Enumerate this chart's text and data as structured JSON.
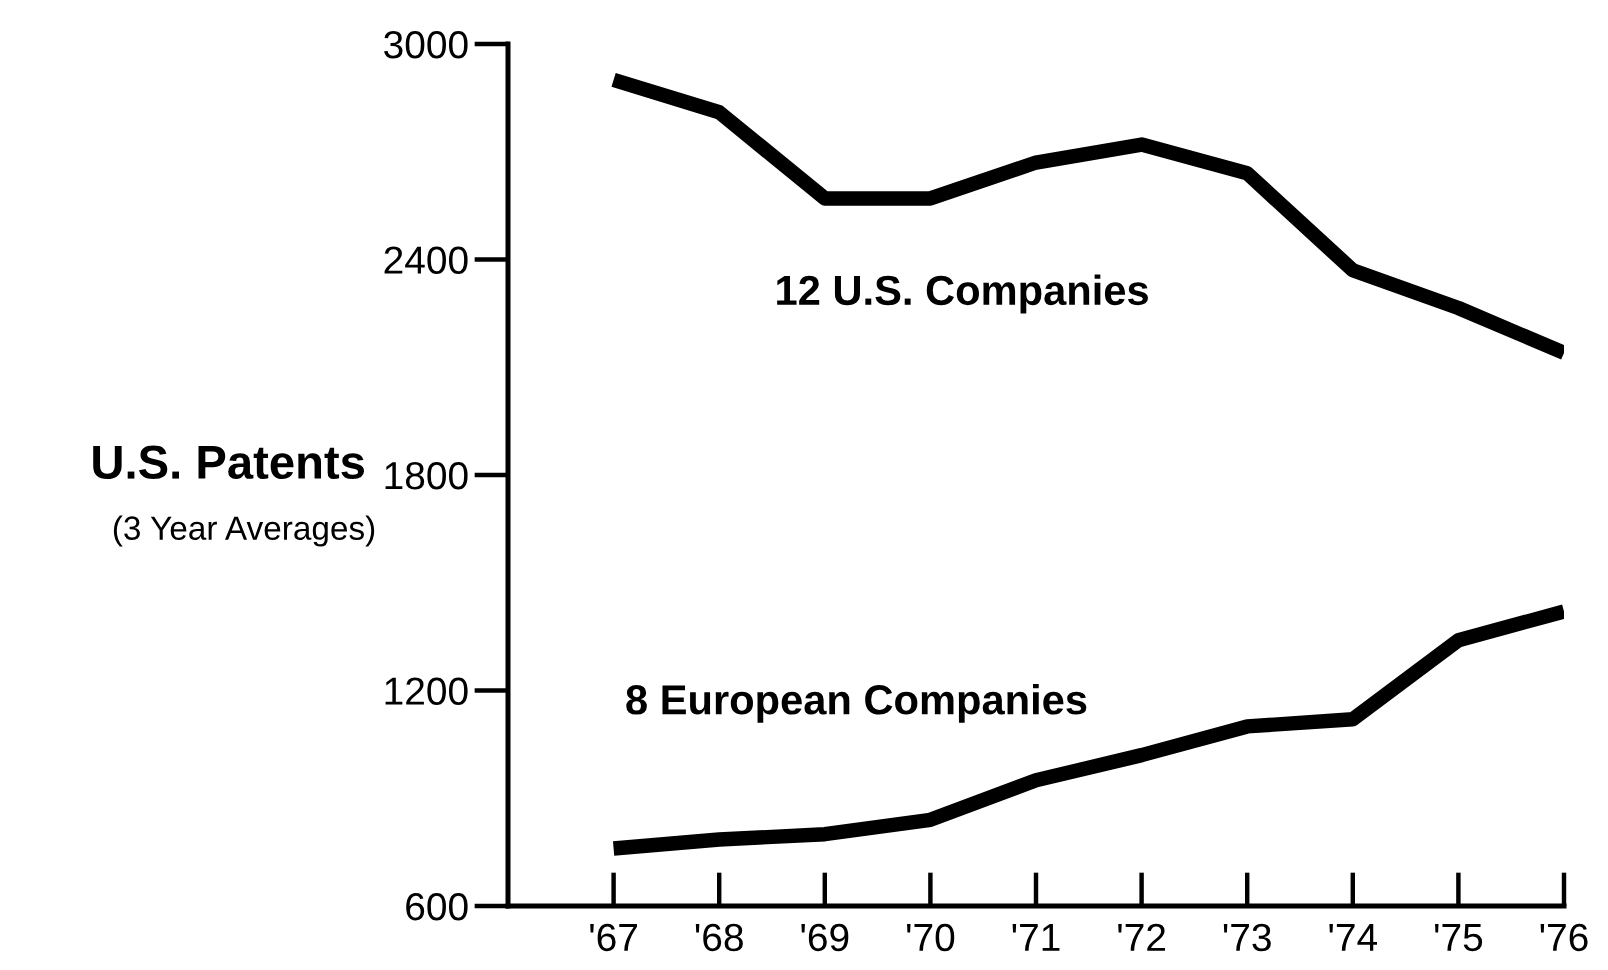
{
  "chart_data": {
    "type": "line",
    "categories": [
      "'67",
      "'68",
      "'69",
      "'70",
      "'71",
      "'72",
      "'73",
      "'74",
      "'75",
      "'76"
    ],
    "series": [
      {
        "name": "12 U.S. Companies",
        "color": "#000000",
        "values": [
          2900,
          2810,
          2570,
          2570,
          2670,
          2720,
          2640,
          2370,
          2265,
          2140
        ]
      },
      {
        "name": "8 European Companies",
        "color": "#000000",
        "values": [
          760,
          785,
          800,
          840,
          950,
          1020,
          1100,
          1120,
          1340,
          1420
        ]
      }
    ],
    "ylabel": "U.S. Patents",
    "annotations": [
      "(3 Year Averages)"
    ],
    "ylim": [
      600,
      3000
    ],
    "yticks": [
      600,
      1200,
      1800,
      2400,
      3000
    ],
    "grid": false,
    "legend": false,
    "marker": "none",
    "line_style": "solid"
  }
}
